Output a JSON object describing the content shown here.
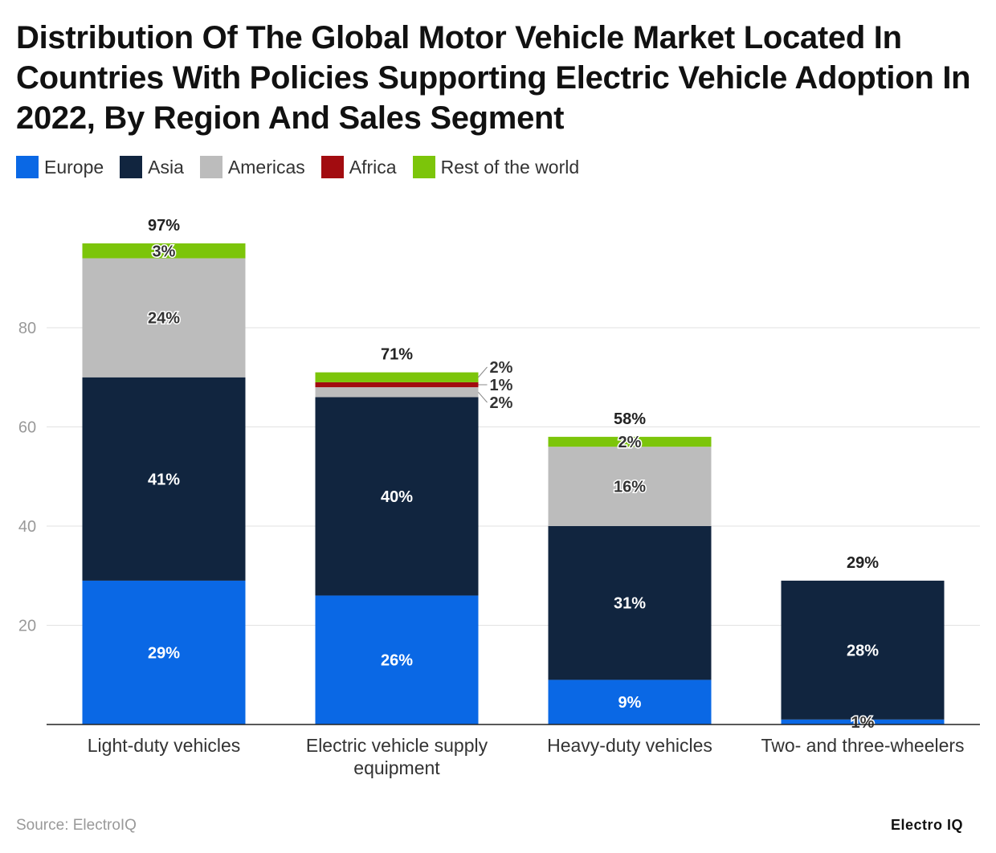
{
  "title": "Distribution Of The Global Motor Vehicle Market Located In Countries With Policies Supporting Electric Vehicle Adoption In 2022, By Region And Sales Segment",
  "source": "Source: ElectroIQ",
  "logo_text": "Electro IQ",
  "chart_data": {
    "type": "bar",
    "stacked": true,
    "title": "Distribution Of The Global Motor Vehicle Market Located In Countries With Policies Supporting Electric Vehicle Adoption In 2022, By Region And Sales Segment",
    "categories": [
      [
        "Light-duty vehicles"
      ],
      [
        "Electric vehicle supply",
        "equipment"
      ],
      [
        "Heavy-duty vehicles"
      ],
      [
        "Two- and three-wheelers"
      ]
    ],
    "series": [
      {
        "name": "Europe",
        "color": "#0a68e5",
        "values": [
          29,
          26,
          9,
          1
        ],
        "label_color": "light"
      },
      {
        "name": "Asia",
        "color": "#11253f",
        "values": [
          41,
          40,
          31,
          28
        ],
        "label_color": "light"
      },
      {
        "name": "Americas",
        "color": "#bcbcbc",
        "values": [
          24,
          2,
          16,
          0
        ],
        "label_color": "dark"
      },
      {
        "name": "Africa",
        "color": "#a20c10",
        "values": [
          0,
          1,
          0,
          0
        ],
        "label_color": "dark"
      },
      {
        "name": "Rest of the world",
        "color": "#7cc50a",
        "values": [
          3,
          2,
          2,
          0
        ],
        "label_color": "dark"
      }
    ],
    "totals": [
      "97%",
      "71%",
      "58%",
      "29%"
    ],
    "value_suffix": "%",
    "yticks": [
      20,
      40,
      60,
      80
    ],
    "ylim": [
      0,
      100
    ],
    "xlabel": "",
    "ylabel": "",
    "grid": true,
    "legend_position": "top-left"
  }
}
